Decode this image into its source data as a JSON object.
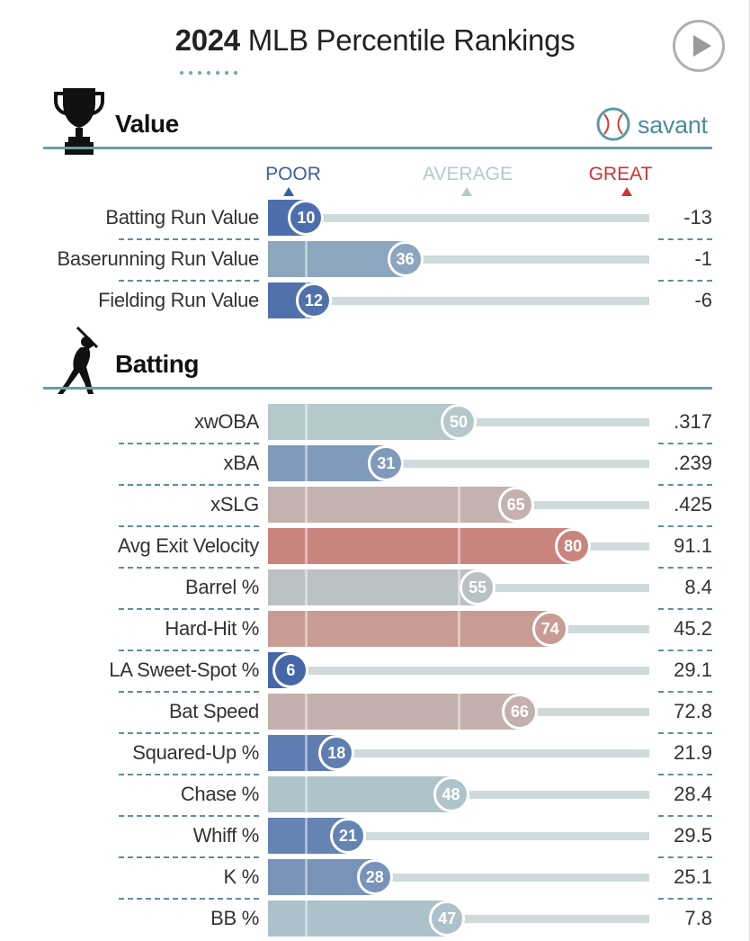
{
  "header": {
    "title_year": "2024",
    "title_rest": "MLB Percentile Rankings",
    "play_button": "play"
  },
  "branding": {
    "savant_label": "savant"
  },
  "legend": {
    "poor": "POOR",
    "average": "AVERAGE",
    "great": "GREAT",
    "poor_color": "#3b5ea6",
    "average_color": "#b5c9cc",
    "great_color": "#cc3333"
  },
  "chart_data": {
    "type": "bar",
    "title": "2024 MLB Percentile Rankings",
    "xlim": [
      0,
      100
    ],
    "scale_labels": [
      "POOR",
      "AVERAGE",
      "GREAT"
    ],
    "sections": [
      {
        "name": "Value",
        "icon": "trophy-icon",
        "rows": [
          {
            "label": "Batting Run Value",
            "percentile": 10,
            "value": "-13"
          },
          {
            "label": "Baserunning Run Value",
            "percentile": 36,
            "value": "-1"
          },
          {
            "label": "Fielding Run Value",
            "percentile": 12,
            "value": "-6"
          }
        ]
      },
      {
        "name": "Batting",
        "icon": "batter-icon",
        "rows": [
          {
            "label": "xwOBA",
            "percentile": 50,
            "value": ".317"
          },
          {
            "label": "xBA",
            "percentile": 31,
            "value": ".239"
          },
          {
            "label": "xSLG",
            "percentile": 65,
            "value": ".425"
          },
          {
            "label": "Avg Exit Velocity",
            "percentile": 80,
            "value": "91.1"
          },
          {
            "label": "Barrel %",
            "percentile": 55,
            "value": "8.4"
          },
          {
            "label": "Hard-Hit %",
            "percentile": 74,
            "value": "45.2"
          },
          {
            "label": "LA Sweet-Spot %",
            "percentile": 6,
            "value": "29.1"
          },
          {
            "label": "Bat Speed",
            "percentile": 66,
            "value": "72.8"
          },
          {
            "label": "Squared-Up %",
            "percentile": 18,
            "value": "21.9"
          },
          {
            "label": "Chase %",
            "percentile": 48,
            "value": "28.4"
          },
          {
            "label": "Whiff %",
            "percentile": 21,
            "value": "29.5"
          },
          {
            "label": "K %",
            "percentile": 28,
            "value": "25.1"
          },
          {
            "label": "BB %",
            "percentile": 47,
            "value": "7.8"
          }
        ]
      }
    ]
  }
}
